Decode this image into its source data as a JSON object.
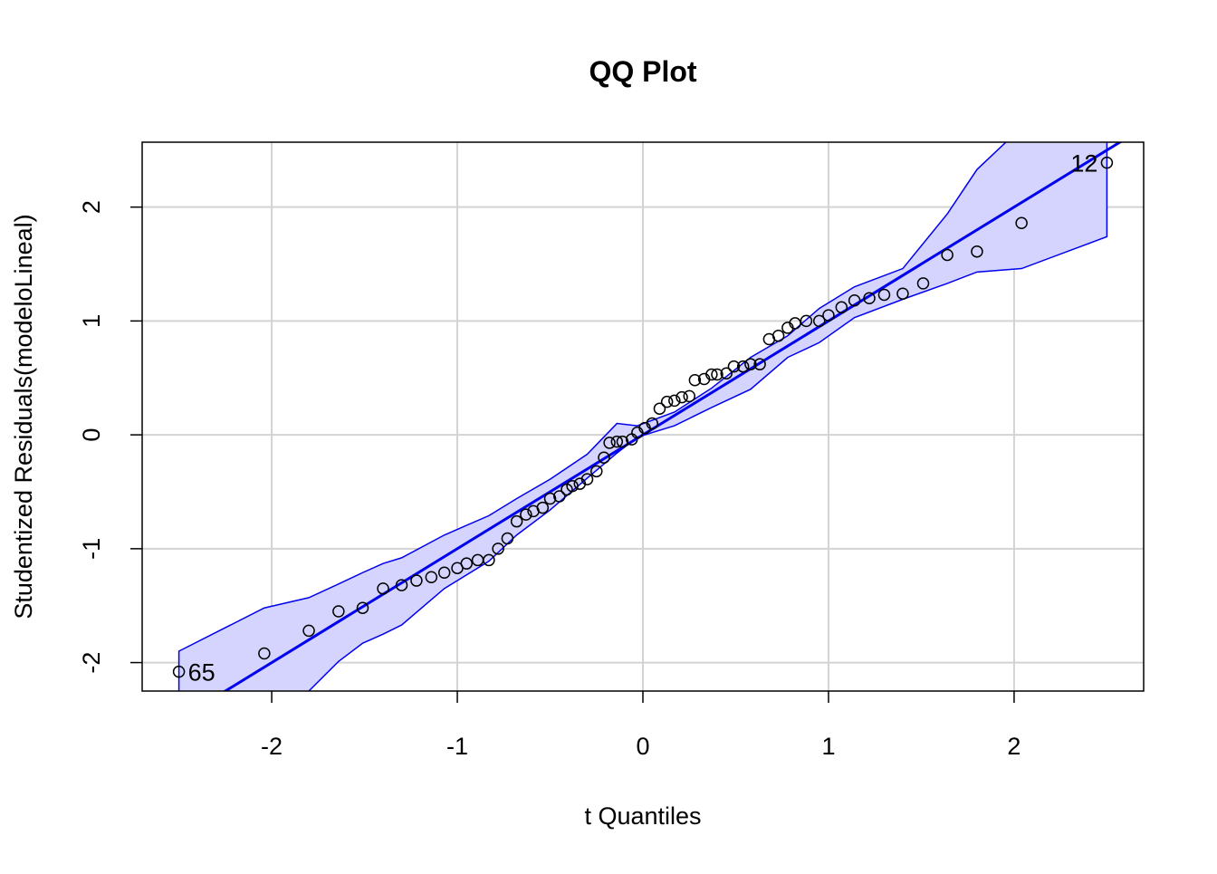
{
  "chart_data": {
    "type": "qq",
    "title": "QQ Plot",
    "xlabel": "t Quantiles",
    "ylabel": "Studentized Residuals(modeloLineal)",
    "x": [
      -2.5,
      -2.04,
      -1.8,
      -1.64,
      -1.51,
      -1.4,
      -1.3,
      -1.22,
      -1.14,
      -1.07,
      -1.0,
      -0.95,
      -0.89,
      -0.83,
      -0.78,
      -0.73,
      -0.68,
      -0.63,
      -0.59,
      -0.54,
      -0.5,
      -0.45,
      -0.41,
      -0.38,
      -0.34,
      -0.3,
      -0.25,
      -0.21,
      -0.18,
      -0.14,
      -0.11,
      -0.06,
      -0.03,
      0.01,
      0.05,
      0.09,
      0.13,
      0.17,
      0.21,
      0.25,
      0.28,
      0.33,
      0.37,
      0.4,
      0.45,
      0.49,
      0.54,
      0.58,
      0.63,
      0.68,
      0.73,
      0.78,
      0.82,
      0.88,
      0.95,
      1.0,
      1.07,
      1.14,
      1.22,
      1.3,
      1.4,
      1.51,
      1.64,
      1.8,
      2.04,
      2.5
    ],
    "values": [
      -2.08,
      -1.92,
      -1.72,
      -1.55,
      -1.52,
      -1.35,
      -1.32,
      -1.28,
      -1.25,
      -1.21,
      -1.17,
      -1.13,
      -1.1,
      -1.1,
      -1.0,
      -0.91,
      -0.76,
      -0.7,
      -0.67,
      -0.64,
      -0.56,
      -0.54,
      -0.48,
      -0.45,
      -0.43,
      -0.39,
      -0.32,
      -0.2,
      -0.07,
      -0.06,
      -0.06,
      -0.04,
      0.02,
      0.06,
      0.1,
      0.23,
      0.29,
      0.3,
      0.33,
      0.34,
      0.48,
      0.49,
      0.53,
      0.53,
      0.54,
      0.6,
      0.6,
      0.62,
      0.62,
      0.84,
      0.87,
      0.94,
      0.98,
      1.0,
      1.0,
      1.05,
      1.12,
      1.18,
      1.2,
      1.23,
      1.24,
      1.33,
      1.58,
      1.61,
      1.86,
      2.39
    ],
    "point_color": "#000000",
    "line": {
      "intercept": 0,
      "slope": 1,
      "color": "#0000ee"
    },
    "band": {
      "color": "#0000ee",
      "fill": "#d4d4ff",
      "x": [
        -2.5,
        -2.04,
        -1.8,
        -1.64,
        -1.51,
        -1.4,
        -1.3,
        -1.07,
        -0.83,
        -0.68,
        -0.5,
        -0.3,
        -0.14,
        -0.03,
        0.17,
        0.37,
        0.58,
        0.78,
        0.95,
        1.14,
        1.4,
        1.64,
        1.8,
        2.04,
        2.5
      ],
      "upper": [
        -1.9,
        -1.52,
        -1.43,
        -1.31,
        -1.21,
        -1.13,
        -1.08,
        -0.88,
        -0.71,
        -0.56,
        -0.39,
        -0.17,
        0.1,
        0.08,
        0.2,
        0.41,
        0.68,
        0.87,
        1.11,
        1.3,
        1.46,
        1.94,
        2.33,
        2.7,
        2.7
      ],
      "lower": [
        -2.55,
        -2.47,
        -2.25,
        -1.99,
        -1.83,
        -1.75,
        -1.67,
        -1.35,
        -1.11,
        -0.88,
        -0.66,
        -0.38,
        -0.16,
        -0.02,
        0.08,
        0.24,
        0.4,
        0.68,
        0.81,
        1.03,
        1.19,
        1.33,
        1.43,
        1.46,
        1.74
      ]
    },
    "annotations": [
      {
        "text": "65",
        "x": -2.5,
        "y": -2.08,
        "side": "right"
      },
      {
        "text": "12",
        "x": 2.5,
        "y": 2.39,
        "side": "left"
      }
    ],
    "xlim": [
      -2.698,
      2.698
    ],
    "ylim": [
      -2.25,
      2.57
    ],
    "xticks": [
      -2,
      -1,
      0,
      1,
      2
    ],
    "yticks": [
      -2,
      -1,
      0,
      1,
      2
    ],
    "grid": true
  }
}
